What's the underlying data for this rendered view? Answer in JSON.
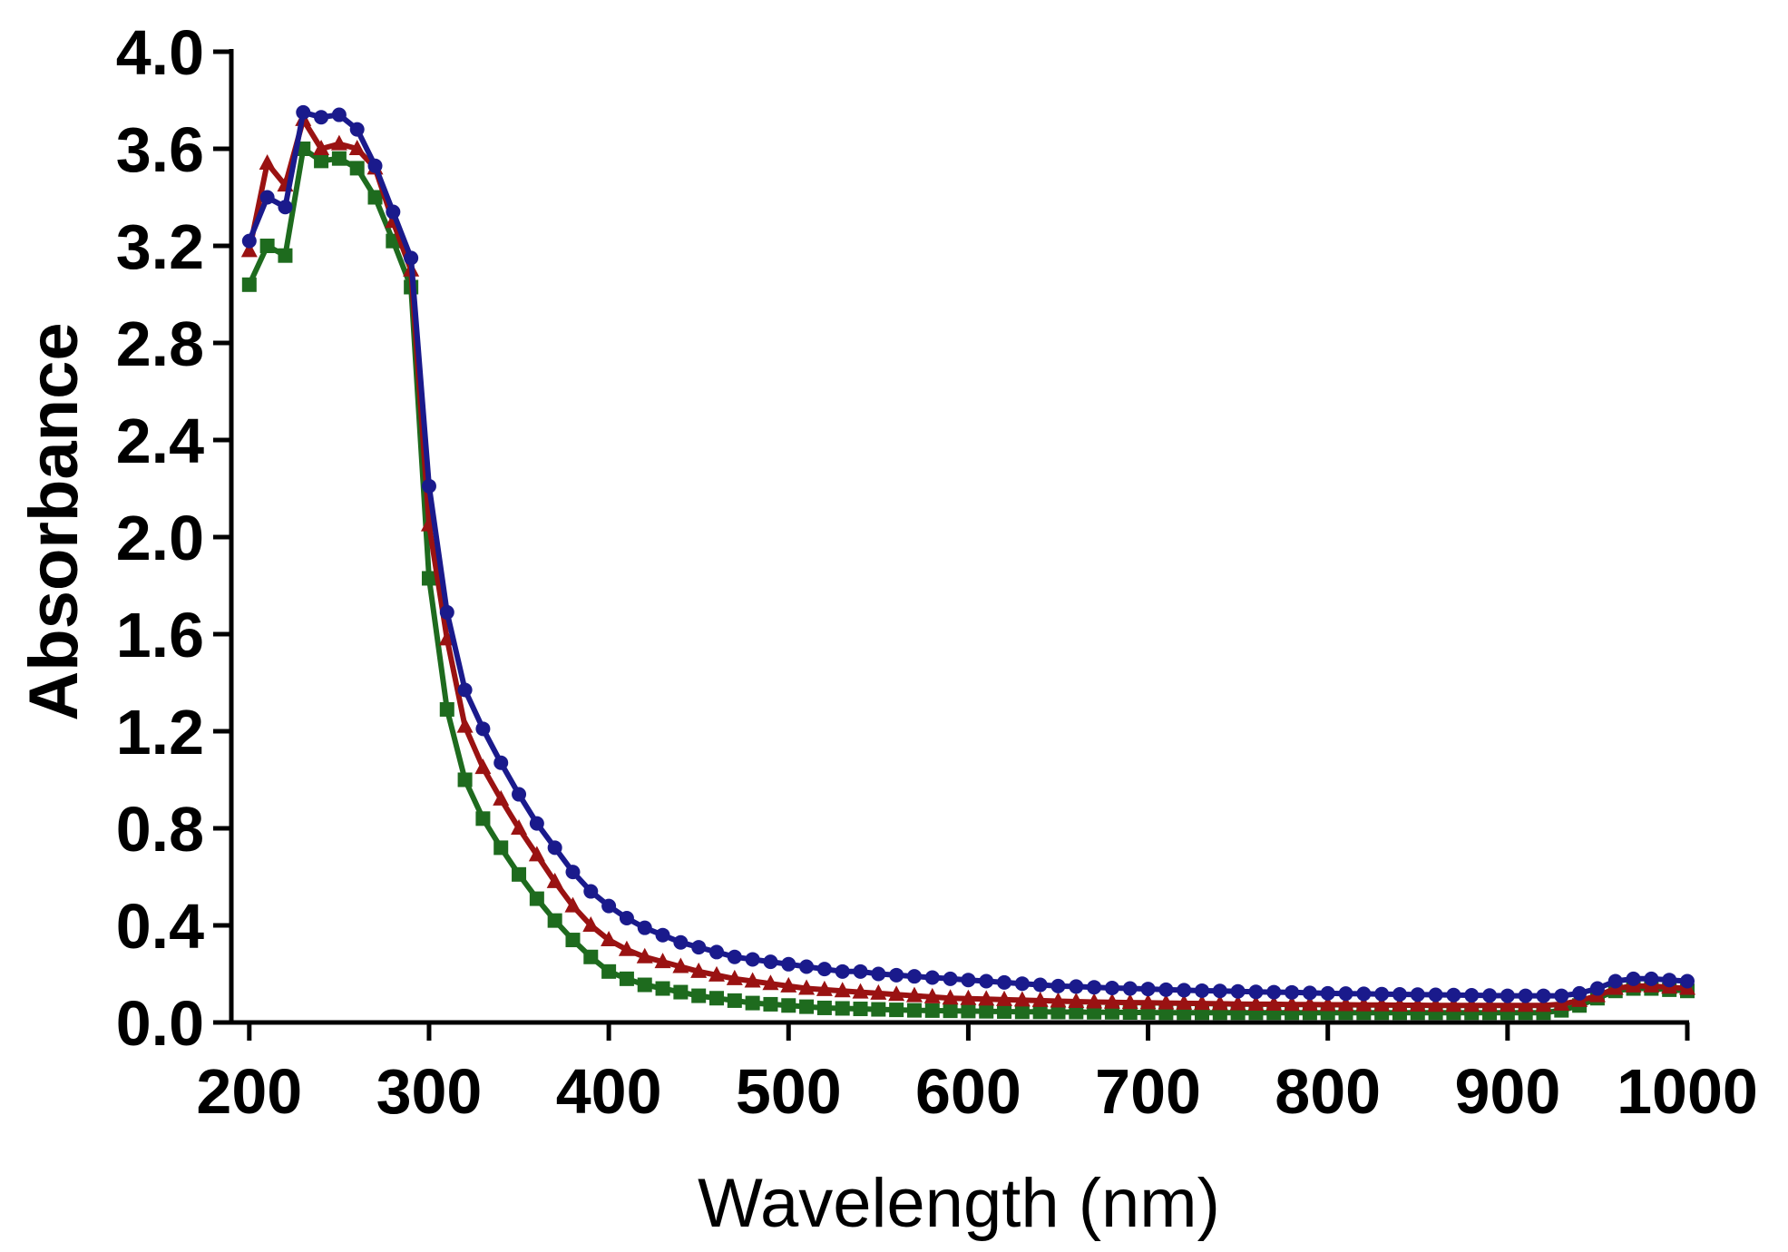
{
  "chart_data": {
    "type": "line",
    "title": "",
    "xlabel": "Wavelength (nm)",
    "ylabel": "Absorbance",
    "xlim": [
      190,
      1000
    ],
    "ylim": [
      0,
      4
    ],
    "xticks": [
      200,
      300,
      400,
      500,
      600,
      700,
      800,
      900,
      1000
    ],
    "xtick_labels": [
      "200",
      "300",
      "400",
      "500",
      "600",
      "700",
      "800",
      "900",
      "1000"
    ],
    "yticks": [
      0,
      0.4,
      0.8,
      1.2,
      1.6,
      2.0,
      2.4,
      2.8,
      3.2,
      3.6,
      4.0
    ],
    "ytick_labels": [
      "0.0",
      "0.4",
      "0.8",
      "1.2",
      "1.6",
      "2.0",
      "2.4",
      "2.8",
      "3.2",
      "3.6",
      "4.0"
    ],
    "grid": false,
    "legend": "none",
    "x": [
      200,
      210,
      220,
      230,
      240,
      250,
      260,
      270,
      280,
      290,
      300,
      310,
      320,
      330,
      340,
      350,
      360,
      370,
      380,
      390,
      400,
      410,
      420,
      430,
      440,
      450,
      460,
      470,
      480,
      490,
      500,
      510,
      520,
      530,
      540,
      550,
      560,
      570,
      580,
      590,
      600,
      610,
      620,
      630,
      640,
      650,
      660,
      670,
      680,
      690,
      700,
      710,
      720,
      730,
      740,
      750,
      760,
      770,
      780,
      790,
      800,
      810,
      820,
      830,
      840,
      850,
      860,
      870,
      880,
      890,
      900,
      910,
      920,
      930,
      940,
      950,
      960,
      970,
      980,
      990,
      1000
    ],
    "series": [
      {
        "name": "blue-circles",
        "color": "#1a1a8c",
        "marker": "circle",
        "values": [
          3.22,
          3.4,
          3.36,
          3.75,
          3.73,
          3.74,
          3.68,
          3.53,
          3.34,
          3.15,
          2.21,
          1.69,
          1.37,
          1.21,
          1.07,
          0.94,
          0.82,
          0.72,
          0.62,
          0.54,
          0.48,
          0.43,
          0.39,
          0.36,
          0.33,
          0.31,
          0.29,
          0.27,
          0.26,
          0.25,
          0.24,
          0.23,
          0.22,
          0.21,
          0.21,
          0.2,
          0.195,
          0.19,
          0.185,
          0.18,
          0.175,
          0.17,
          0.165,
          0.16,
          0.155,
          0.15,
          0.148,
          0.145,
          0.142,
          0.14,
          0.138,
          0.135,
          0.133,
          0.131,
          0.13,
          0.128,
          0.126,
          0.125,
          0.124,
          0.122,
          0.12,
          0.119,
          0.118,
          0.117,
          0.116,
          0.115,
          0.114,
          0.113,
          0.112,
          0.111,
          0.11,
          0.11,
          0.11,
          0.11,
          0.12,
          0.14,
          0.17,
          0.18,
          0.18,
          0.175,
          0.17
        ]
      },
      {
        "name": "red-triangles",
        "color": "#9a1212",
        "marker": "triangle",
        "values": [
          3.18,
          3.54,
          3.45,
          3.72,
          3.6,
          3.62,
          3.6,
          3.52,
          3.3,
          3.1,
          2.05,
          1.58,
          1.22,
          1.05,
          0.92,
          0.8,
          0.69,
          0.58,
          0.48,
          0.4,
          0.34,
          0.3,
          0.27,
          0.25,
          0.23,
          0.21,
          0.195,
          0.18,
          0.17,
          0.16,
          0.15,
          0.14,
          0.135,
          0.13,
          0.125,
          0.12,
          0.115,
          0.11,
          0.105,
          0.1,
          0.098,
          0.096,
          0.094,
          0.092,
          0.09,
          0.088,
          0.086,
          0.084,
          0.083,
          0.082,
          0.081,
          0.08,
          0.079,
          0.078,
          0.077,
          0.076,
          0.075,
          0.075,
          0.074,
          0.074,
          0.073,
          0.073,
          0.072,
          0.072,
          0.071,
          0.071,
          0.07,
          0.07,
          0.07,
          0.07,
          0.07,
          0.07,
          0.07,
          0.075,
          0.09,
          0.11,
          0.14,
          0.15,
          0.15,
          0.145,
          0.14
        ]
      },
      {
        "name": "green-squares",
        "color": "#1e6b1e",
        "marker": "square",
        "values": [
          3.04,
          3.2,
          3.16,
          3.6,
          3.55,
          3.56,
          3.52,
          3.4,
          3.22,
          3.03,
          1.83,
          1.29,
          1.0,
          0.84,
          0.72,
          0.61,
          0.51,
          0.42,
          0.34,
          0.27,
          0.21,
          0.18,
          0.155,
          0.14,
          0.125,
          0.11,
          0.1,
          0.09,
          0.08,
          0.075,
          0.07,
          0.065,
          0.06,
          0.058,
          0.056,
          0.054,
          0.052,
          0.05,
          0.049,
          0.048,
          0.047,
          0.046,
          0.045,
          0.044,
          0.044,
          0.043,
          0.043,
          0.042,
          0.042,
          0.041,
          0.041,
          0.04,
          0.04,
          0.04,
          0.04,
          0.04,
          0.04,
          0.04,
          0.04,
          0.04,
          0.04,
          0.04,
          0.04,
          0.04,
          0.04,
          0.04,
          0.04,
          0.04,
          0.04,
          0.04,
          0.04,
          0.04,
          0.04,
          0.05,
          0.07,
          0.1,
          0.13,
          0.14,
          0.14,
          0.135,
          0.13
        ]
      }
    ]
  }
}
